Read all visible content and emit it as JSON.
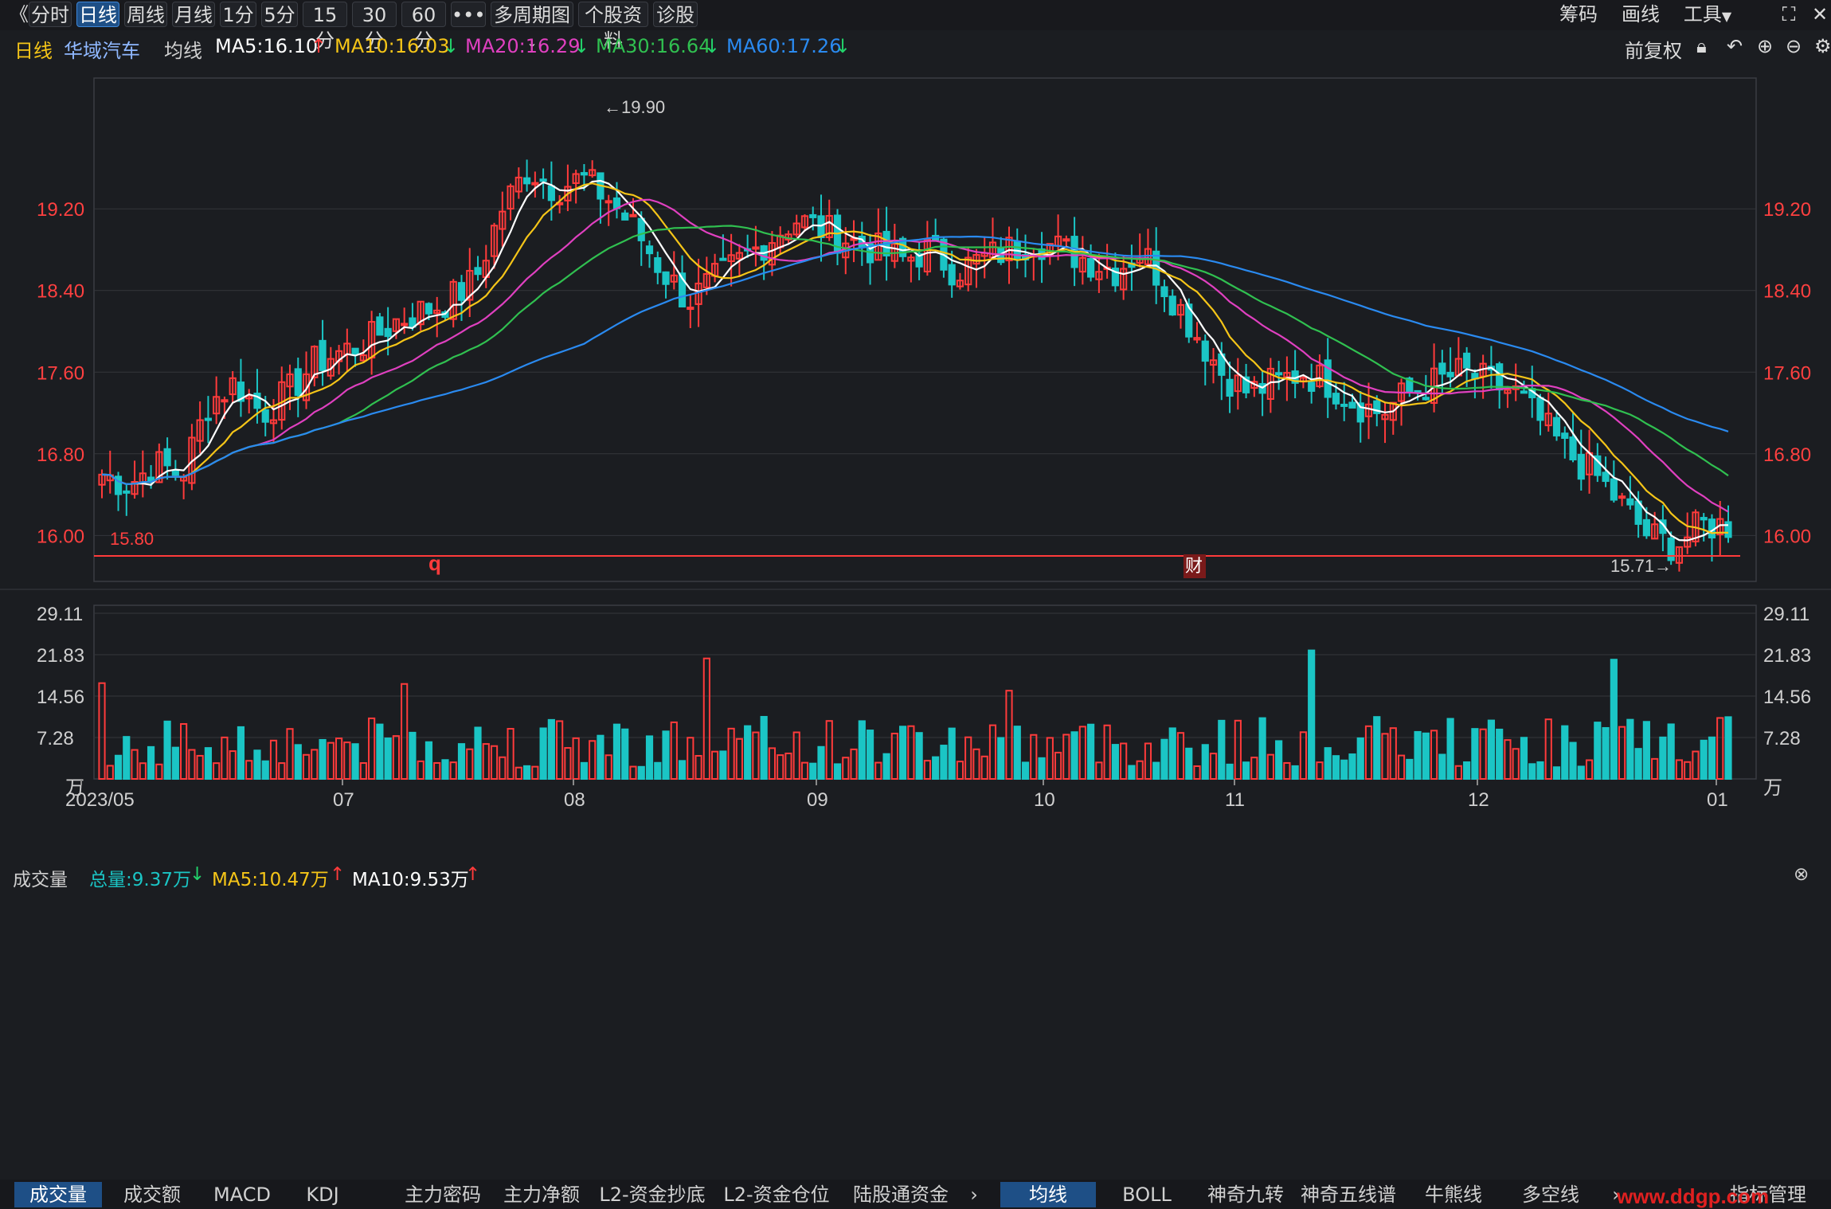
{
  "toolbar": {
    "back_icon": "double-chevron-left-icon",
    "periods": [
      "分时",
      "日线",
      "周线",
      "月线",
      "1分",
      "5分",
      "15分",
      "30分",
      "60分"
    ],
    "active_period": "日线",
    "more": "•••",
    "multi_period": "多周期图",
    "stock_info": "个股资料",
    "diagnose": "诊股",
    "right": [
      "筹码",
      "画线",
      "工具"
    ],
    "fullscreen_icon": "fullscreen-icon"
  },
  "ma_bar": {
    "period_label": "日线",
    "stock_name": "华域汽车",
    "indicator": "均线",
    "ma5": "MA5:16.10",
    "ma10": "MA10:16.03",
    "ma20": "MA20:16.29",
    "ma30": "MA30:16.64",
    "ma60": "MA60:17.26",
    "adjust": "前复权",
    "colors": {
      "ma5": "#ffffff",
      "ma10": "#f5c518",
      "ma20": "#e040c0",
      "ma30": "#30c050",
      "ma60": "#2a8af0",
      "up": "#ff3b3b",
      "down": "#1bc5c5"
    }
  },
  "price_axis": {
    "ticks": [
      "19.20",
      "18.40",
      "17.60",
      "16.80",
      "16.00"
    ]
  },
  "annotations": {
    "high_label": "←19.90",
    "low_label": "15.71→",
    "line_label": "15.80",
    "q_marker": "q",
    "fin_marker": "财"
  },
  "volume_bar": {
    "title": "成交量",
    "total": "总量:9.37万",
    "ma5": "MA5:10.47万",
    "ma10": "MA10:9.53万"
  },
  "volume_axis": {
    "ticks": [
      "29.11",
      "21.83",
      "14.56",
      "7.28",
      "万"
    ]
  },
  "date_axis": [
    "2023/05",
    "07",
    "08",
    "09",
    "10",
    "11",
    "12",
    "01"
  ],
  "bottom_tabs_left": [
    "成交量",
    "成交额",
    "MACD",
    "KDJ",
    "主力密码",
    "主力净额",
    "L2-资金抄底",
    "L2-资金仓位",
    "陆股通资金"
  ],
  "bottom_tabs_right": [
    "均线",
    "BOLL",
    "神奇九转",
    "神奇五线谱",
    "牛熊线",
    "多空线",
    "指标管理"
  ],
  "watermark": "www.ddgp.com",
  "chart_data": {
    "type": "candlestick",
    "title": "华域汽车",
    "ylim": [
      15.55,
      20.45
    ],
    "x_labels": [
      "2023/05",
      "07",
      "08",
      "09",
      "10",
      "11",
      "12",
      "01"
    ],
    "keypoints_close": [
      16.6,
      16.5,
      16.7,
      16.6,
      17.3,
      17.5,
      17.2,
      17.4,
      17.7,
      17.8,
      17.9,
      18.1,
      18.2,
      18.3,
      18.5,
      19.2,
      19.6,
      19.4,
      19.5,
      19.3,
      19.0,
      18.6,
      18.3,
      18.5,
      18.7,
      18.9,
      19.1,
      19.0,
      18.9,
      18.8,
      18.7,
      18.8,
      18.6,
      18.7,
      18.8,
      18.9,
      18.8,
      18.7,
      18.6,
      18.8,
      18.4,
      18.0,
      17.6,
      17.4,
      17.5,
      17.6,
      17.5,
      17.3,
      17.2,
      17.4,
      17.5,
      17.6,
      17.5,
      17.4,
      17.1,
      16.8,
      16.6,
      16.3,
      16.0,
      15.9,
      16.1,
      16.1
    ],
    "volume_ylim": [
      0,
      29.11
    ],
    "volume_unit": "万",
    "series": [
      {
        "name": "MA5",
        "last": 16.1
      },
      {
        "name": "MA10",
        "last": 16.03
      },
      {
        "name": "MA20",
        "last": 16.29
      },
      {
        "name": "MA30",
        "last": 16.64
      },
      {
        "name": "MA60",
        "last": 17.26
      }
    ]
  }
}
